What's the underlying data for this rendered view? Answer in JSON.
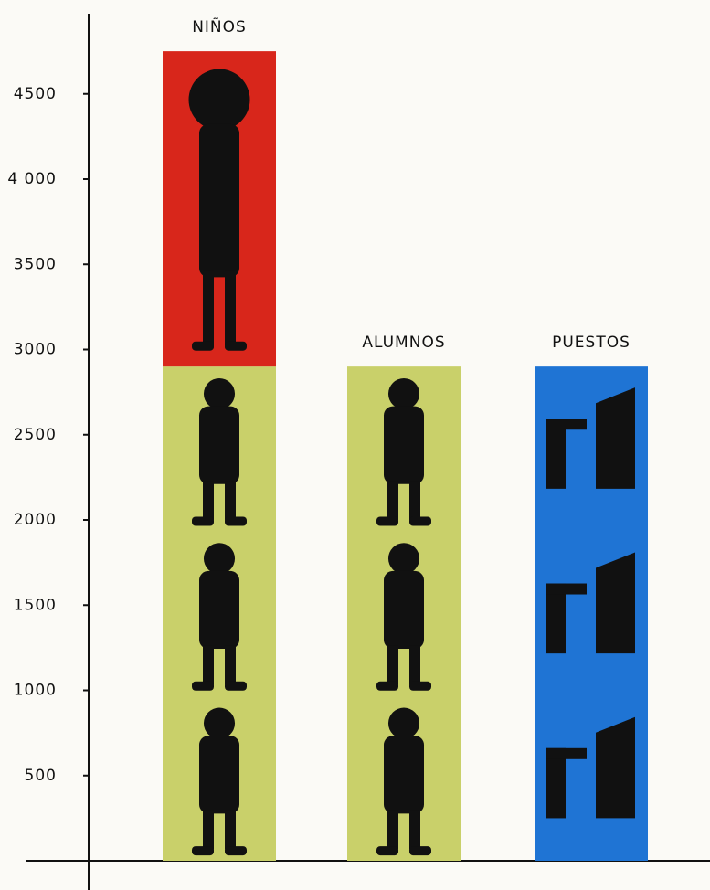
{
  "chart_data": {
    "type": "stacked-bar",
    "categories": [
      "NIÑOS",
      "ALUMNOS",
      "PUESTOS"
    ],
    "series": [
      {
        "color": "#c9d06a",
        "values": [
          2900,
          2900,
          null
        ]
      },
      {
        "color": "#d8261b",
        "values": [
          1850,
          null,
          null
        ]
      },
      {
        "color": "#1f74d4",
        "values": [
          null,
          null,
          2900
        ]
      }
    ],
    "ylim": [
      0,
      5000
    ],
    "yticks": [
      500,
      1000,
      1500,
      2000,
      2500,
      3000,
      3500,
      {
        "value": 4000,
        "label": "4 000"
      },
      4500
    ],
    "grid": false
  }
}
